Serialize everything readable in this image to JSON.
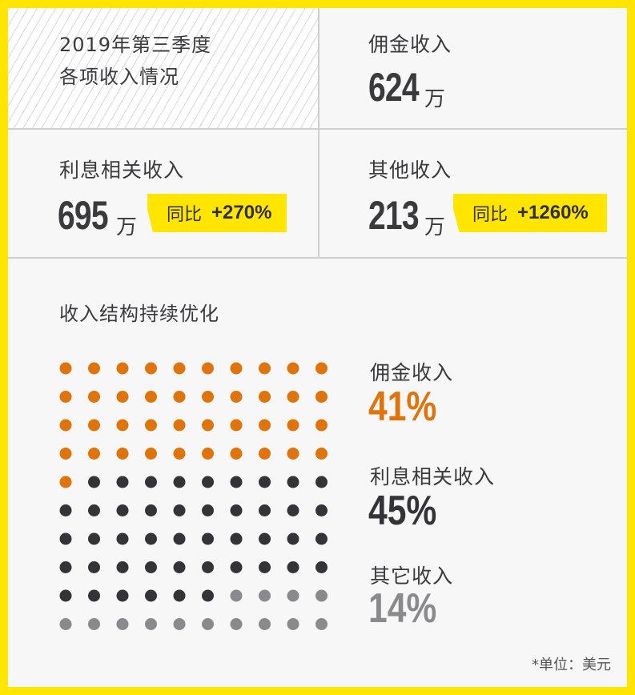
{
  "header": {
    "title_line1": "2019年第三季度",
    "title_line2": "各项收入情况"
  },
  "cards": {
    "commission": {
      "label": "佣金收入",
      "value": "624",
      "unit": "万"
    },
    "interest": {
      "label": "利息相关收入",
      "value": "695",
      "unit": "万",
      "badge_prefix": "同比",
      "badge_value": "+270%"
    },
    "other": {
      "label": "其他收入",
      "value": "213",
      "unit": "万",
      "badge_prefix": "同比",
      "badge_value": "+1260%"
    }
  },
  "structure": {
    "title": "收入结构持续优化"
  },
  "footnote": "*单位：美元",
  "colors": {
    "accent_yellow": "#ffe500",
    "commission": "#e07309",
    "interest": "#333338",
    "other": "#8a8a8e"
  },
  "chart_data": {
    "type": "waffle",
    "grid": {
      "rows": 10,
      "cols": 10
    },
    "series": [
      {
        "name": "佣金收入",
        "value": 41,
        "label": "41%",
        "color": "#e07309"
      },
      {
        "name": "利息相关收入",
        "value": 45,
        "label": "45%",
        "color": "#333338"
      },
      {
        "name": "其它收入",
        "value": 14,
        "label": "14%",
        "color": "#8a8a8e"
      }
    ]
  }
}
